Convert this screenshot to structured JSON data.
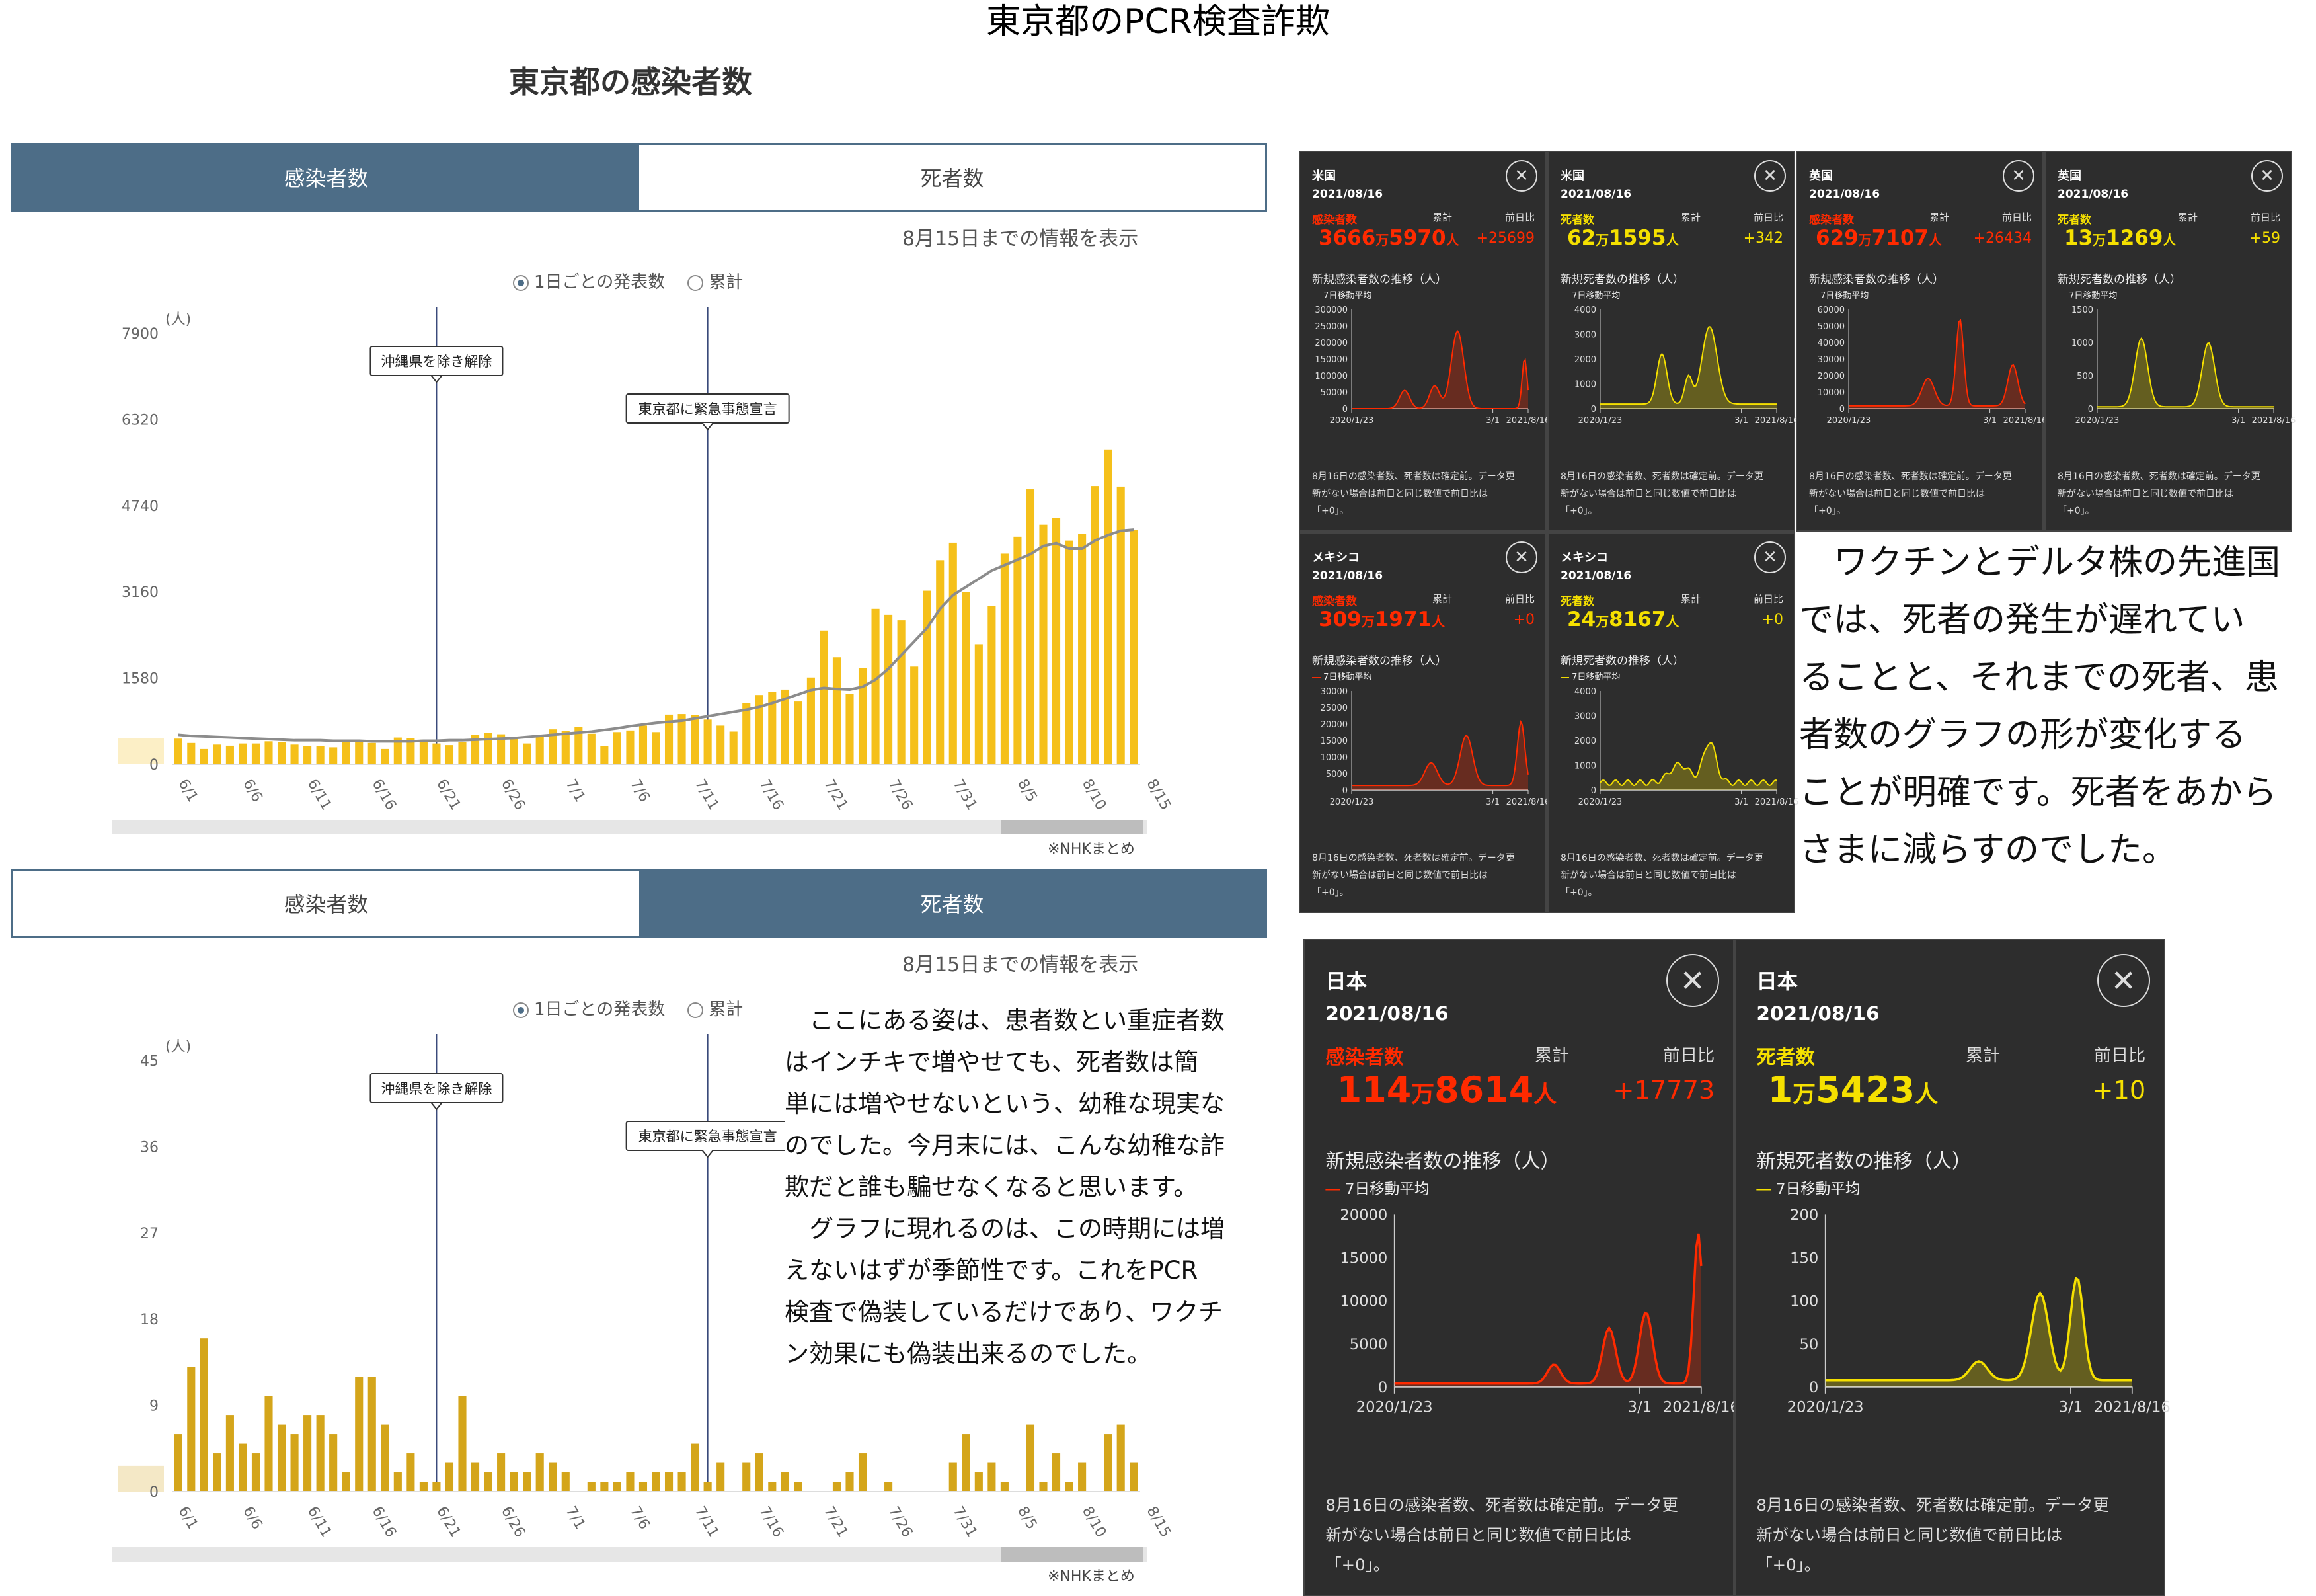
{
  "title": "東京都のPCR検査詐欺",
  "subtitle": "東京都の感染者数",
  "colors": {
    "tab_active": "#4d6d87",
    "bar_yellow": "#f5c01a",
    "bar_olive": "#d4a51a",
    "avg_line": "#8c8c8c",
    "red": "#ff2a00",
    "yellow": "#f5e000"
  },
  "upper": {
    "tabs": [
      {
        "label": "感染者数",
        "active": true
      },
      {
        "label": "死者数",
        "active": false
      }
    ],
    "info": "8月15日までの情報を表示",
    "radio": {
      "daily": "1日ごとの発表数",
      "cumulative": "累計"
    },
    "unit": "(人)",
    "source": "※NHKまとめ"
  },
  "lower": {
    "tabs": [
      {
        "label": "感染者数",
        "active": false
      },
      {
        "label": "死者数",
        "active": true
      }
    ],
    "info": "8月15日までの情報を表示",
    "radio": {
      "daily": "1日ごとの発表数",
      "cumulative": "累計"
    },
    "unit": "(人)",
    "source": "※NHKまとめ"
  },
  "body_text": [
    "　ここにある姿は、患者数とい重症者数",
    "はインチキで増やせても、死者数は簡",
    "単には増やせないという、幼稚な現実な",
    "のでした。今月末には、こんな幼稚な詐",
    "欺だと誰も騙せなくなると思います。",
    "　グラフに現れるのは、この時期には増",
    "えないはずが季節性です。これをPCR",
    "検査で偽装しているだけであり、ワクチ",
    "ン効果にも偽装出来るのでした。"
  ],
  "right_text": [
    "　ワクチンとデルタ株の先進国",
    "では、死者の発生が遅れてい",
    "ることと、それまでの死者、患",
    "者数のグラフの形が変化する",
    "ことが明確です。死者をあから",
    "さまに減らすのでした。"
  ],
  "panel_common": {
    "date": "2021/08/16",
    "cum_label": "累計",
    "diff_label": "前日比",
    "avg_label": "7日移動平均",
    "x_ticks": [
      "2020/1/23",
      "3/1",
      "2021/8/16"
    ],
    "note": [
      "8月16日の感染者数、死者数は確定前。データ更",
      "新がない場合は前日と同じ数値で前日比は",
      "「+0」。"
    ]
  },
  "panels": [
    {
      "country": "米国",
      "kind": "感染者数",
      "total_main": "3666",
      "total_unit": "万",
      "total_rest": "5970",
      "total_suffix": "人",
      "diff": "+25699",
      "trend": "新規感染者数の推移（人）",
      "y_ticks": [
        "300000",
        "250000",
        "200000",
        "150000",
        "100000",
        "50000",
        "0"
      ],
      "color": "#ff2a00"
    },
    {
      "country": "米国",
      "kind": "死者数",
      "total_main": "62",
      "total_unit": "万",
      "total_rest": "1595",
      "total_suffix": "人",
      "diff": "+342",
      "trend": "新規死者数の推移（人）",
      "y_ticks": [
        "4000",
        "3000",
        "2000",
        "1000",
        "0"
      ],
      "color": "#f5e000"
    },
    {
      "country": "英国",
      "kind": "感染者数",
      "total_main": "629",
      "total_unit": "万",
      "total_rest": "7107",
      "total_suffix": "人",
      "diff": "+26434",
      "trend": "新規感染者数の推移（人）",
      "y_ticks": [
        "60000",
        "50000",
        "40000",
        "30000",
        "20000",
        "10000",
        "0"
      ],
      "color": "#ff2a00"
    },
    {
      "country": "英国",
      "kind": "死者数",
      "total_main": "13",
      "total_unit": "万",
      "total_rest": "1269",
      "total_suffix": "人",
      "diff": "+59",
      "trend": "新規死者数の推移（人）",
      "y_ticks": [
        "1500",
        "1000",
        "500",
        "0"
      ],
      "color": "#f5e000"
    },
    {
      "country": "メキシコ",
      "kind": "感染者数",
      "total_main": "309",
      "total_unit": "万",
      "total_rest": "1971",
      "total_suffix": "人",
      "diff": "+0",
      "trend": "新規感染者数の推移（人）",
      "y_ticks": [
        "30000",
        "25000",
        "20000",
        "15000",
        "10000",
        "5000",
        "0"
      ],
      "color": "#ff2a00"
    },
    {
      "country": "メキシコ",
      "kind": "死者数",
      "total_main": "24",
      "total_unit": "万",
      "total_rest": "8167",
      "total_suffix": "人",
      "diff": "+0",
      "trend": "新規死者数の推移（人）",
      "y_ticks": [
        "4000",
        "3000",
        "2000",
        "1000",
        "0"
      ],
      "color": "#f5e000"
    },
    {
      "country": "日本",
      "kind": "感染者数",
      "total_main": "114",
      "total_unit": "万",
      "total_rest": "8614",
      "total_suffix": "人",
      "diff": "+17773",
      "trend": "新規感染者数の推移（人）",
      "y_ticks": [
        "20000",
        "15000",
        "10000",
        "5000",
        "0"
      ],
      "color": "#ff2a00"
    },
    {
      "country": "日本",
      "kind": "死者数",
      "total_main": "1",
      "total_unit": "万",
      "total_rest": "5423",
      "total_suffix": "人",
      "diff": "+10",
      "trend": "新規死者数の推移（人）",
      "y_ticks": [
        "200",
        "150",
        "100",
        "50",
        "0"
      ],
      "color": "#f5e000"
    }
  ],
  "chart_data": [
    {
      "type": "bar",
      "title": "東京都の感染者数",
      "ylabel": "(人)",
      "ylim": [
        0,
        7900
      ],
      "y_ticks": [
        "7900",
        "6320",
        "4740",
        "3160",
        "1580",
        "0"
      ],
      "x_tick_labels": [
        "6/1",
        "6/6",
        "6/11",
        "6/16",
        "6/21",
        "6/26",
        "7/1",
        "7/6",
        "7/11",
        "7/16",
        "7/21",
        "7/26",
        "7/31",
        "8/5",
        "8/10",
        "8/15"
      ],
      "x_range": [
        "6/1",
        "8/15"
      ],
      "annotations": [
        {
          "label": "沖縄県を除き解除",
          "date": "6/21"
        },
        {
          "label": "東京都に緊急事態宣言",
          "date": "7/12"
        }
      ],
      "series": [
        {
          "values": [
            470,
            390,
            280,
            360,
            340,
            380,
            380,
            420,
            410,
            360,
            330,
            330,
            310,
            430,
            440,
            390,
            280,
            490,
            480,
            450,
            380,
            350,
            410,
            540,
            570,
            550,
            480,
            380,
            510,
            640,
            610,
            680,
            560,
            330,
            590,
            620,
            710,
            590,
            910,
            920,
            900,
            820,
            710,
            600,
            1120,
            1270,
            1330,
            1370,
            1150,
            1590,
            2450,
            1960,
            1290,
            1760,
            2850,
            2740,
            2640,
            1790,
            3180,
            3740,
            4060,
            3160,
            2200,
            2900,
            3860,
            4170,
            5040,
            4390,
            4510,
            4100,
            4220,
            5100,
            5770,
            5090,
            4300
          ]
        },
        {
          "type": "line",
          "values": [
            540,
            520,
            510,
            500,
            490,
            480,
            470,
            460,
            450,
            440,
            440,
            440,
            430,
            430,
            430,
            420,
            420,
            420,
            420,
            430,
            430,
            440,
            440,
            450,
            460,
            470,
            480,
            500,
            520,
            540,
            560,
            580,
            600,
            630,
            660,
            700,
            730,
            760,
            780,
            800,
            840,
            880,
            920,
            960,
            1000,
            1050,
            1120,
            1200,
            1280,
            1360,
            1400,
            1380,
            1370,
            1420,
            1550,
            1750,
            2000,
            2250,
            2500,
            2850,
            3100,
            3250,
            3400,
            3550,
            3650,
            3750,
            3850,
            4000,
            4050,
            3950,
            3950,
            4100,
            4200,
            4280,
            4300
          ]
        }
      ]
    },
    {
      "type": "bar",
      "title": "死者数",
      "ylabel": "(人)",
      "ylim": [
        0,
        45
      ],
      "y_ticks": [
        "45",
        "36",
        "27",
        "18",
        "9",
        "0"
      ],
      "x_tick_labels": [
        "6/1",
        "6/6",
        "6/11",
        "6/16",
        "6/21",
        "6/26",
        "7/1",
        "7/6",
        "7/11",
        "7/16",
        "7/21",
        "7/26",
        "7/31",
        "8/5",
        "8/10",
        "8/15"
      ],
      "x_range": [
        "6/1",
        "8/15"
      ],
      "annotations": [
        {
          "label": "沖縄県を除き解除",
          "date": "6/21"
        },
        {
          "label": "東京都に緊急事態宣言",
          "date": "7/12"
        }
      ],
      "series": [
        {
          "values": [
            6,
            13,
            16,
            4,
            8,
            5,
            4,
            10,
            7,
            6,
            8,
            8,
            6,
            2,
            12,
            12,
            7,
            2,
            4,
            1,
            1,
            3,
            10,
            3,
            2,
            4,
            2,
            2,
            4,
            3,
            2,
            0,
            1,
            1,
            1,
            2,
            1,
            2,
            2,
            2,
            5,
            1,
            3,
            0,
            3,
            4,
            1,
            2,
            1,
            0,
            0,
            1,
            2,
            4,
            0,
            1,
            0,
            0,
            0,
            0,
            3,
            6,
            2,
            3,
            1,
            0,
            7,
            1,
            4,
            1,
            3,
            0,
            6,
            7,
            3
          ]
        }
      ]
    }
  ]
}
